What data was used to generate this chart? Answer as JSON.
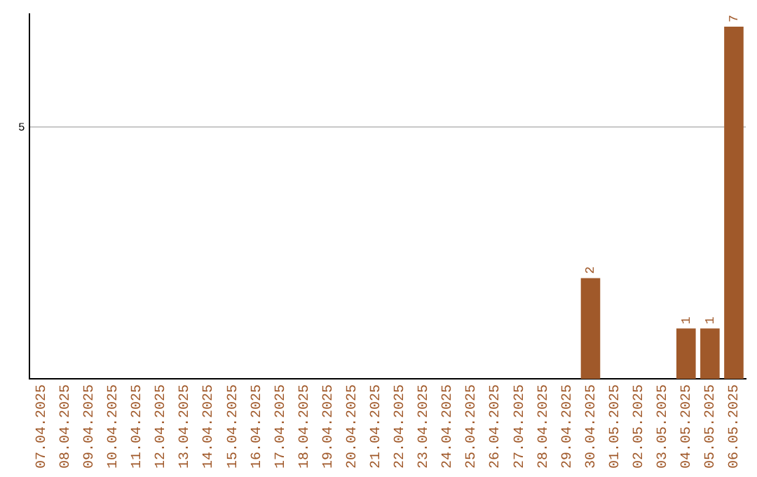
{
  "chart_data": {
    "type": "bar",
    "categories": [
      "07.04.2025",
      "08.04.2025",
      "09.04.2025",
      "10.04.2025",
      "11.04.2025",
      "12.04.2025",
      "13.04.2025",
      "14.04.2025",
      "15.04.2025",
      "16.04.2025",
      "17.04.2025",
      "18.04.2025",
      "19.04.2025",
      "20.04.2025",
      "21.04.2025",
      "22.04.2025",
      "23.04.2025",
      "24.04.2025",
      "25.04.2025",
      "26.04.2025",
      "27.04.2025",
      "28.04.2025",
      "29.04.2025",
      "30.04.2025",
      "01.05.2025",
      "02.05.2025",
      "03.05.2025",
      "04.05.2025",
      "05.05.2025",
      "06.05.2025"
    ],
    "values": [
      null,
      null,
      null,
      null,
      null,
      null,
      null,
      null,
      null,
      null,
      null,
      null,
      null,
      null,
      null,
      null,
      null,
      null,
      null,
      null,
      null,
      null,
      null,
      2,
      null,
      null,
      null,
      1,
      1,
      7
    ],
    "data_labels": true,
    "color": "#a0592a",
    "ylim": [
      0,
      7.25
    ],
    "yticks": [
      5
    ],
    "grid": "y",
    "legend": false
  }
}
